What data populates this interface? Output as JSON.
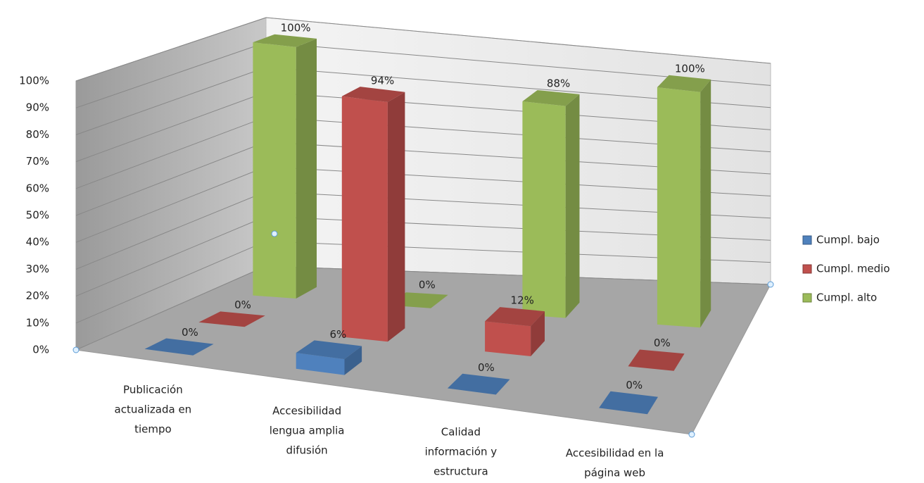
{
  "chart_data": {
    "type": "bar3d",
    "categories": [
      [
        "Publicación",
        "actualizada en",
        "tiempo"
      ],
      [
        "Accesibilidad",
        "lengua amplia",
        "difusión"
      ],
      [
        "Calidad",
        "información y",
        "estructura"
      ],
      [
        "Accesibilidad en la",
        "página web"
      ]
    ],
    "series": [
      {
        "name": "Cumpl. bajo",
        "color": "#4f81bd",
        "values": [
          0,
          6,
          0,
          0
        ],
        "value_labels": [
          "0%",
          "6%",
          "0%",
          "0%"
        ]
      },
      {
        "name": "Cumpl. medio",
        "color": "#c0504d",
        "values": [
          0,
          94,
          12,
          0
        ],
        "value_labels": [
          "0%",
          "94%",
          "12%",
          "0%"
        ]
      },
      {
        "name": "Cumpl. alto",
        "color": "#9bbb59",
        "values": [
          100,
          0,
          88,
          100
        ],
        "value_labels": [
          "100%",
          "0%",
          "88%",
          "100%"
        ]
      }
    ],
    "ylim": [
      0,
      100
    ],
    "yticks": [
      {
        "value": 0,
        "label": "0%"
      },
      {
        "value": 10,
        "label": "10%"
      },
      {
        "value": 20,
        "label": "20%"
      },
      {
        "value": 30,
        "label": "30%"
      },
      {
        "value": 40,
        "label": "40%"
      },
      {
        "value": 50,
        "label": "50%"
      },
      {
        "value": 60,
        "label": "60%"
      },
      {
        "value": 70,
        "label": "70%"
      },
      {
        "value": 80,
        "label": "80%"
      },
      {
        "value": 90,
        "label": "90%"
      },
      {
        "value": 100,
        "label": "100%"
      }
    ],
    "grid": true,
    "legend": "right"
  }
}
